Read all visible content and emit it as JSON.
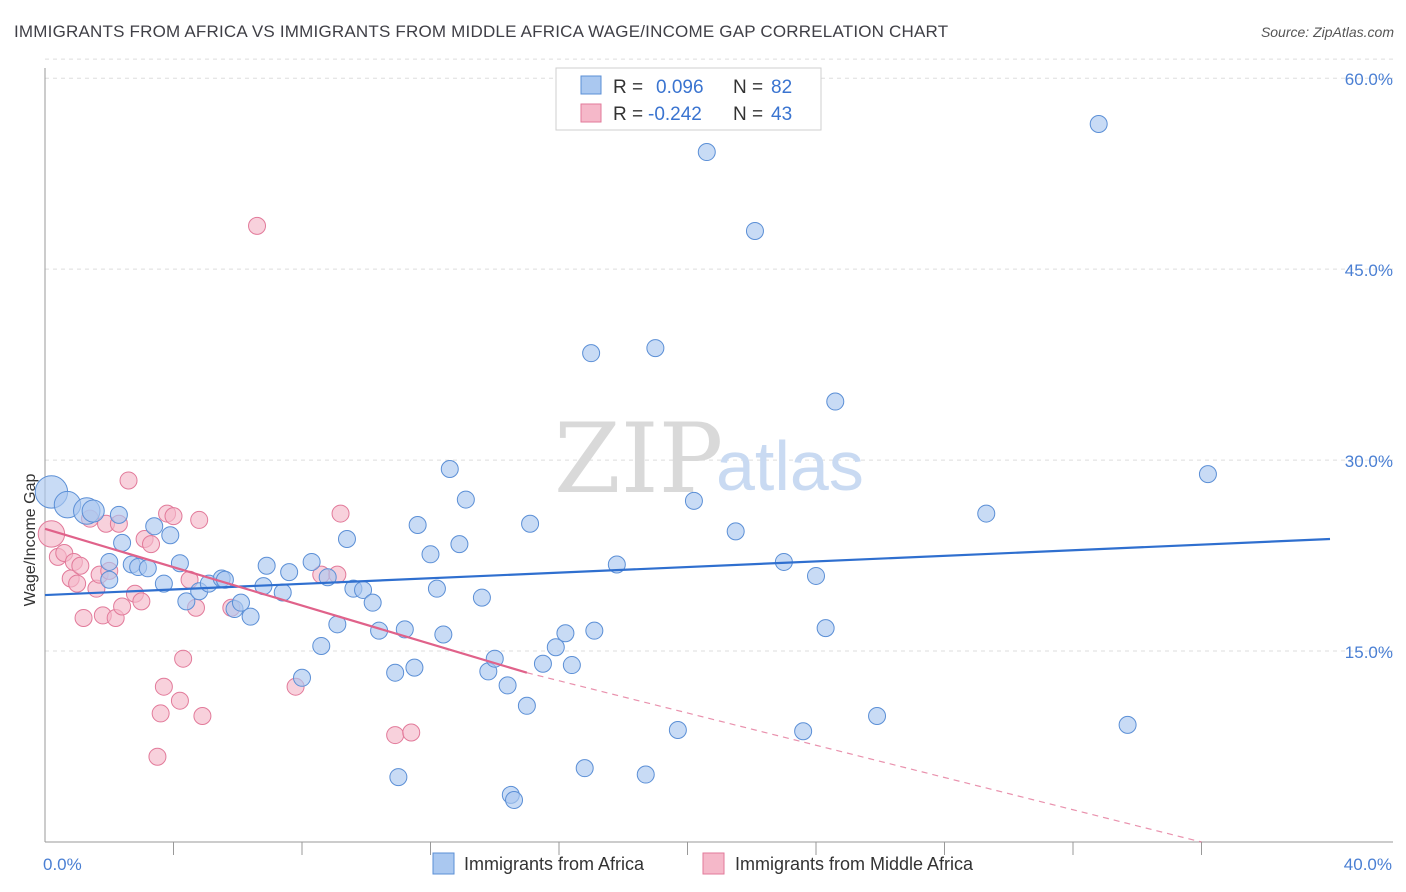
{
  "title": "IMMIGRANTS FROM AFRICA VS IMMIGRANTS FROM MIDDLE AFRICA WAGE/INCOME GAP CORRELATION CHART",
  "source": "Source: ZipAtlas.com",
  "watermark": {
    "part1": "ZIP",
    "part2": "atlas"
  },
  "colors": {
    "blue_fill": "#aac8f0",
    "blue_stroke": "#5b8fd6",
    "blue_line": "#2f6fcf",
    "pink_fill": "#f5b8c9",
    "pink_stroke": "#e27a9a",
    "pink_line": "#e0628a",
    "tick_text": "#4a7fd3",
    "grid": "#dddddd"
  },
  "legend": {
    "r_label": "R =",
    "n_label": "N =",
    "series": [
      {
        "r": "0.096",
        "n": "82"
      },
      {
        "r": "-0.242",
        "n": "43"
      }
    ]
  },
  "chart_data": {
    "type": "scatter",
    "title": "IMMIGRANTS FROM AFRICA VS IMMIGRANTS FROM MIDDLE AFRICA WAGE/INCOME GAP CORRELATION CHART",
    "xlabel": "",
    "ylabel": "Wage/Income Gap",
    "xlim": [
      0,
      40
    ],
    "ylim": [
      0,
      61.5
    ],
    "x_tick_labels": [
      "0.0%",
      "40.0%"
    ],
    "y_ticks": [
      15,
      30,
      45,
      60
    ],
    "y_tick_labels": [
      "15.0%",
      "30.0%",
      "45.0%",
      "60.0%"
    ],
    "legend_position": "top-center",
    "series": [
      {
        "name": "Immigrants from Africa",
        "color": "blue",
        "trend": {
          "x": [
            0,
            40
          ],
          "y": [
            19.4,
            23.8
          ]
        },
        "points": [
          [
            0.2,
            27.5,
            3
          ],
          [
            0.7,
            26.5,
            2
          ],
          [
            1.3,
            26,
            2
          ],
          [
            1.5,
            26,
            1.4
          ],
          [
            2.3,
            25.7,
            1
          ],
          [
            2.0,
            20.6,
            1
          ],
          [
            2.0,
            22.0,
            1
          ],
          [
            2.4,
            23.5,
            1
          ],
          [
            2.7,
            21.8,
            1
          ],
          [
            2.9,
            21.6,
            1
          ],
          [
            3.2,
            21.5,
            1
          ],
          [
            3.4,
            24.8,
            1
          ],
          [
            3.7,
            20.3,
            1
          ],
          [
            3.9,
            24.1,
            1
          ],
          [
            4.2,
            21.9,
            1
          ],
          [
            4.4,
            18.9,
            1
          ],
          [
            4.8,
            19.7,
            1
          ],
          [
            5.1,
            20.3,
            1
          ],
          [
            5.5,
            20.7,
            1
          ],
          [
            5.6,
            20.6,
            1
          ],
          [
            5.9,
            18.3,
            1
          ],
          [
            6.1,
            18.8,
            1
          ],
          [
            6.4,
            17.7,
            1
          ],
          [
            6.8,
            20.1,
            1
          ],
          [
            6.9,
            21.7,
            1
          ],
          [
            7.4,
            19.6,
            1
          ],
          [
            7.6,
            21.2,
            1
          ],
          [
            8.0,
            12.9,
            1
          ],
          [
            8.3,
            22.0,
            1
          ],
          [
            8.6,
            15.4,
            1
          ],
          [
            8.8,
            20.8,
            1
          ],
          [
            9.1,
            17.1,
            1
          ],
          [
            9.4,
            23.8,
            1
          ],
          [
            9.6,
            19.9,
            1
          ],
          [
            9.9,
            19.8,
            1
          ],
          [
            10.2,
            18.8,
            1
          ],
          [
            10.4,
            16.6,
            1
          ],
          [
            10.9,
            13.3,
            1
          ],
          [
            11.0,
            5.1,
            1
          ],
          [
            11.2,
            16.7,
            1
          ],
          [
            11.5,
            13.7,
            1
          ],
          [
            11.6,
            24.9,
            1
          ],
          [
            12.0,
            22.6,
            1
          ],
          [
            12.2,
            19.9,
            1
          ],
          [
            12.4,
            16.3,
            1
          ],
          [
            12.6,
            29.3,
            1
          ],
          [
            12.9,
            23.4,
            1
          ],
          [
            13.1,
            26.9,
            1
          ],
          [
            13.6,
            19.2,
            1
          ],
          [
            13.8,
            13.4,
            1
          ],
          [
            14.0,
            14.4,
            1
          ],
          [
            14.4,
            12.3,
            1
          ],
          [
            14.5,
            3.7,
            1
          ],
          [
            14.6,
            3.3,
            1
          ],
          [
            15.0,
            10.7,
            1
          ],
          [
            15.1,
            25.0,
            1
          ],
          [
            15.5,
            14.0,
            1
          ],
          [
            15.9,
            15.3,
            1
          ],
          [
            16.2,
            16.4,
            1
          ],
          [
            16.4,
            13.9,
            1
          ],
          [
            16.8,
            5.8,
            1
          ],
          [
            17.0,
            38.4,
            1
          ],
          [
            17.1,
            16.6,
            1
          ],
          [
            17.8,
            21.8,
            1
          ],
          [
            18.7,
            5.3,
            1
          ],
          [
            19.0,
            38.8,
            1
          ],
          [
            19.7,
            8.8,
            1
          ],
          [
            20.2,
            26.8,
            1
          ],
          [
            20.6,
            54.2,
            1
          ],
          [
            21.5,
            24.4,
            1
          ],
          [
            22.1,
            48.0,
            1
          ],
          [
            23.0,
            22.0,
            1
          ],
          [
            23.6,
            8.7,
            1
          ],
          [
            24.0,
            20.9,
            1
          ],
          [
            24.3,
            16.8,
            1
          ],
          [
            24.6,
            34.6,
            1
          ],
          [
            25.9,
            9.9,
            1
          ],
          [
            29.3,
            25.8,
            1
          ],
          [
            32.8,
            56.4,
            1
          ],
          [
            33.7,
            9.2,
            1
          ],
          [
            36.2,
            28.9,
            1
          ]
        ]
      },
      {
        "name": "Immigrants from Middle Africa",
        "color": "pink",
        "trend": {
          "x": [
            0,
            15
          ],
          "y": [
            24.6,
            13.3
          ],
          "dashed_to": {
            "x": 36,
            "y": 0
          }
        },
        "points": [
          [
            0.2,
            24.2,
            2
          ],
          [
            0.4,
            22.4,
            1
          ],
          [
            0.6,
            22.7,
            1
          ],
          [
            0.8,
            20.7,
            1
          ],
          [
            0.9,
            22.0,
            1
          ],
          [
            1.0,
            20.3,
            1
          ],
          [
            1.1,
            21.7,
            1
          ],
          [
            1.2,
            17.6,
            1
          ],
          [
            1.4,
            25.4,
            1
          ],
          [
            1.6,
            19.9,
            1
          ],
          [
            1.7,
            21.0,
            1
          ],
          [
            1.8,
            17.8,
            1
          ],
          [
            1.9,
            25.0,
            1
          ],
          [
            2.0,
            21.3,
            1
          ],
          [
            2.2,
            17.6,
            1
          ],
          [
            2.3,
            25.0,
            1
          ],
          [
            2.4,
            18.5,
            1
          ],
          [
            2.6,
            28.4,
            1
          ],
          [
            2.8,
            19.5,
            1
          ],
          [
            3.0,
            18.9,
            1
          ],
          [
            3.1,
            23.8,
            1
          ],
          [
            3.3,
            23.4,
            1
          ],
          [
            3.5,
            6.7,
            1
          ],
          [
            3.6,
            10.1,
            1
          ],
          [
            3.7,
            12.2,
            1
          ],
          [
            3.8,
            25.8,
            1
          ],
          [
            4.0,
            25.6,
            1
          ],
          [
            4.2,
            11.1,
            1
          ],
          [
            4.3,
            14.4,
            1
          ],
          [
            4.5,
            20.6,
            1
          ],
          [
            4.7,
            18.4,
            1
          ],
          [
            4.8,
            25.3,
            1
          ],
          [
            4.9,
            9.9,
            1
          ],
          [
            5.8,
            18.4,
            1
          ],
          [
            6.6,
            48.4,
            1
          ],
          [
            7.8,
            12.2,
            1
          ],
          [
            8.6,
            21.0,
            1
          ],
          [
            9.1,
            21.0,
            1
          ],
          [
            9.2,
            25.8,
            1
          ],
          [
            10.9,
            8.4,
            1
          ],
          [
            11.4,
            8.6,
            1
          ]
        ]
      }
    ]
  },
  "bottom_legend": [
    {
      "label": "Immigrants from Africa"
    },
    {
      "label": "Immigrants from Middle Africa"
    }
  ]
}
